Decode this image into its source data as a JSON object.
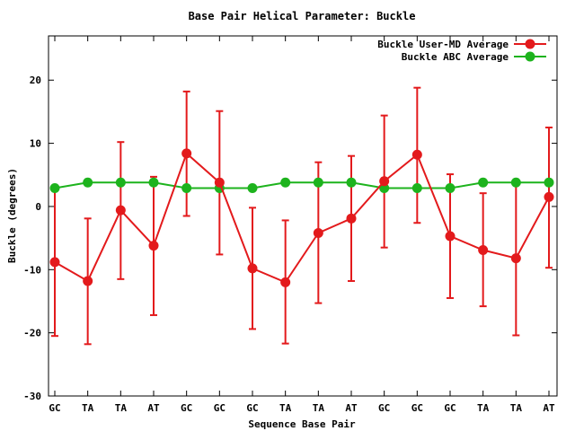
{
  "chart_data": {
    "type": "line",
    "title": "Base Pair Helical Parameter: Buckle",
    "xlabel": "Sequence Base Pair",
    "ylabel": "Buckle (degrees)",
    "ylim": [
      -30,
      27
    ],
    "yticks": [
      -30,
      -20,
      -10,
      0,
      10,
      20
    ],
    "categories": [
      "GC",
      "TA",
      "TA",
      "AT",
      "GC",
      "GC",
      "GC",
      "TA",
      "TA",
      "AT",
      "GC",
      "GC",
      "GC",
      "TA",
      "TA",
      "AT"
    ],
    "legend_position": "top-right",
    "grid": false,
    "series": [
      {
        "name": "Buckle User-MD Average",
        "color": "#e31a1c",
        "values": [
          -8.8,
          -11.8,
          -0.6,
          -6.2,
          8.4,
          3.8,
          -9.8,
          -12.0,
          -4.2,
          -1.9,
          4.0,
          8.2,
          -4.7,
          -6.9,
          -8.2,
          1.5
        ],
        "err_low": [
          -20.5,
          -21.8,
          -11.5,
          -17.2,
          -1.5,
          -7.6,
          -19.4,
          -21.7,
          -15.3,
          -11.8,
          -6.5,
          -2.6,
          -14.5,
          -15.8,
          -20.4,
          -9.7
        ],
        "err_high": [
          2.6,
          -1.9,
          10.2,
          4.7,
          18.2,
          15.1,
          -0.2,
          -2.2,
          7.0,
          8.0,
          14.4,
          18.8,
          5.1,
          2.1,
          4.0,
          12.5
        ]
      },
      {
        "name": "Buckle ABC Average",
        "color": "#1db31d",
        "values": [
          2.9,
          3.8,
          3.8,
          3.8,
          2.9,
          2.9,
          2.9,
          3.8,
          3.8,
          3.8,
          2.9,
          2.9,
          2.9,
          3.8,
          3.8,
          3.8
        ]
      }
    ]
  }
}
